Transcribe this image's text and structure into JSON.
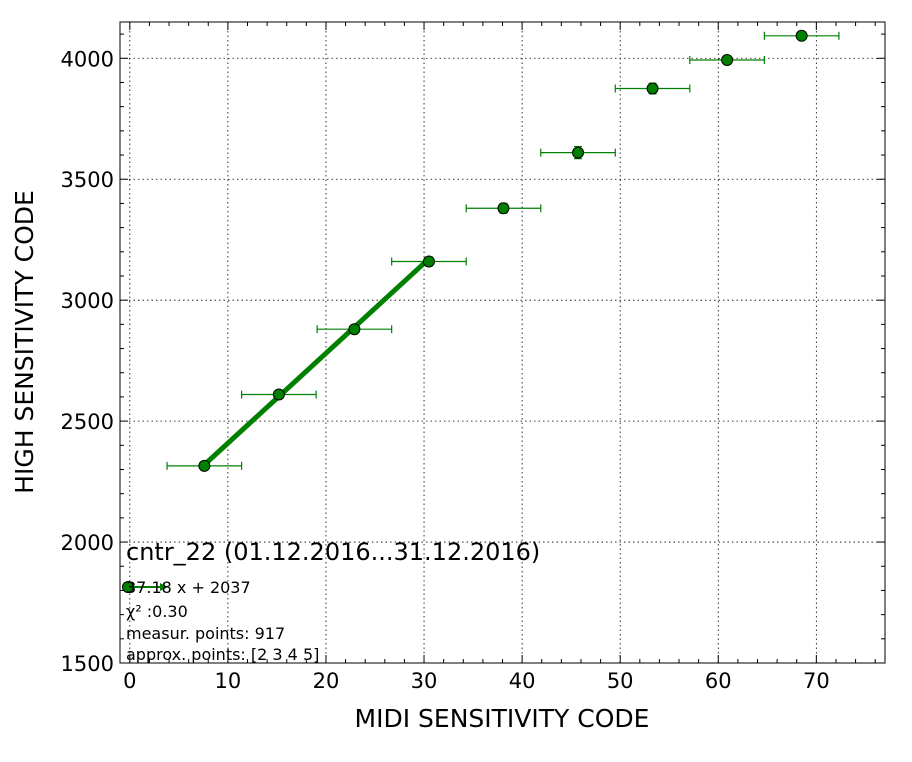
{
  "chart_data": {
    "type": "scatter",
    "title": "cntr_22 (01.12.2016...31.12.2016)",
    "xlabel": "MIDI SENSITIVITY CODE",
    "ylabel": "HIGH SENSITIVITY CODE",
    "xlim": [
      -1,
      77
    ],
    "ylim": [
      1500,
      4150
    ],
    "xticks": [
      0,
      10,
      20,
      30,
      40,
      50,
      60,
      70
    ],
    "yticks": [
      1500,
      2000,
      2500,
      3000,
      3500,
      4000
    ],
    "grid": true,
    "colors": {
      "series": "#008000",
      "marker_edge": "#000000"
    },
    "series": [
      {
        "x": [
          7.6,
          15.2,
          22.9,
          30.5,
          38.1,
          45.7,
          53.3,
          60.9,
          68.5
        ],
        "y": [
          2315,
          2610,
          2880,
          3160,
          3380,
          3610,
          3875,
          3993,
          4093
        ],
        "xerr": [
          3.8,
          3.8,
          3.8,
          3.8,
          3.8,
          3.8,
          3.8,
          3.8,
          3.8
        ],
        "yerr": [
          8,
          10,
          12,
          18,
          20,
          25,
          22,
          8,
          8
        ]
      }
    ],
    "fit": {
      "x_range": [
        7.6,
        30.5
      ],
      "slope": 37.18,
      "intercept": 2037
    },
    "legend": {
      "placement": "lower-left",
      "fit_label": "37.18 x + 2037",
      "chi2_label": "χ² :0.30",
      "measur_label": "measur. points: 917",
      "approx_label": "approx. points: [2 3 4 5]"
    }
  }
}
